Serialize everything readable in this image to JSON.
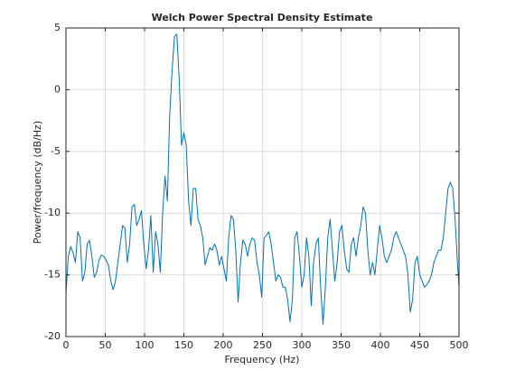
{
  "chart_data": {
    "type": "line",
    "title": "Welch Power Spectral Density Estimate",
    "xlabel": "Frequency (Hz)",
    "ylabel": "Power/frequency (dB/Hz)",
    "xlim": [
      0,
      500
    ],
    "xticks": [
      0,
      50,
      100,
      150,
      200,
      250,
      300,
      350,
      400,
      450,
      500
    ],
    "ylim": [
      -20,
      5
    ],
    "yticks": [
      -20,
      -15,
      -10,
      -5,
      0,
      5
    ],
    "grid": true,
    "series": [
      {
        "color": "#0072bd",
        "x": [
          0,
          3,
          6,
          9,
          12,
          15,
          18,
          21,
          24,
          27,
          30,
          33,
          36,
          39,
          42,
          45,
          48,
          51,
          54,
          57,
          60,
          63,
          66,
          69,
          72,
          75,
          78,
          81,
          84,
          87,
          90,
          93,
          96,
          99,
          102,
          105,
          108,
          111,
          114,
          117,
          120,
          123,
          126,
          129,
          132,
          135,
          138,
          141,
          144,
          147,
          150,
          153,
          156,
          159,
          162,
          165,
          168,
          171,
          174,
          177,
          180,
          183,
          186,
          189,
          192,
          195,
          198,
          201,
          204,
          207,
          210,
          213,
          216,
          219,
          222,
          225,
          228,
          231,
          234,
          237,
          240,
          243,
          246,
          249,
          252,
          255,
          258,
          261,
          264,
          267,
          270,
          273,
          276,
          279,
          282,
          285,
          288,
          291,
          294,
          297,
          300,
          303,
          306,
          309,
          312,
          315,
          318,
          321,
          324,
          327,
          330,
          333,
          336,
          339,
          342,
          345,
          348,
          351,
          354,
          357,
          360,
          363,
          366,
          369,
          372,
          375,
          378,
          381,
          384,
          387,
          390,
          393,
          396,
          399,
          402,
          405,
          408,
          411,
          414,
          417,
          420,
          423,
          426,
          429,
          432,
          435,
          438,
          441,
          444,
          447,
          450,
          453,
          456,
          459,
          462,
          465,
          468,
          471,
          474,
          477,
          480,
          483,
          486,
          489,
          492,
          495,
          498,
          500
        ],
        "values": [
          -16.5,
          -13.5,
          -12.7,
          -13.2,
          -14,
          -11.5,
          -12,
          -15.5,
          -14.8,
          -12.5,
          -12.2,
          -13.5,
          -15.2,
          -14.8,
          -13.8,
          -13.4,
          -13.5,
          -13.8,
          -14.2,
          -15.5,
          -16.2,
          -15.5,
          -14,
          -12.5,
          -11,
          -11.2,
          -14,
          -12.5,
          -9.5,
          -9.3,
          -11,
          -10.5,
          -9.8,
          -12.5,
          -14.5,
          -13,
          -10.2,
          -14.8,
          -11.5,
          -12.5,
          -14.8,
          -10,
          -7,
          -9,
          -2,
          1.5,
          4.3,
          4.5,
          1,
          -4.5,
          -3.5,
          -4.5,
          -9,
          -11,
          -8,
          -8,
          -10.5,
          -11,
          -12,
          -14.2,
          -13.5,
          -12.8,
          -13,
          -12.5,
          -13,
          -14.2,
          -13.5,
          -14.5,
          -15.5,
          -12,
          -10.2,
          -10.5,
          -13,
          -17.2,
          -14,
          -12.2,
          -12.5,
          -13.5,
          -12.5,
          -12,
          -12.2,
          -14,
          -15,
          -16.8,
          -12,
          -11.8,
          -11.5,
          -12.5,
          -14,
          -15.5,
          -15,
          -15.2,
          -16,
          -16,
          -17,
          -18.8,
          -17,
          -12,
          -11.5,
          -13.5,
          -16,
          -15,
          -12,
          -13.5,
          -17.5,
          -14,
          -12.5,
          -12,
          -16,
          -19,
          -16,
          -12,
          -10.5,
          -13,
          -15.5,
          -14,
          -11.5,
          -11,
          -13,
          -14.5,
          -14.8,
          -12.5,
          -12,
          -13.5,
          -12,
          -11,
          -9.5,
          -10,
          -13,
          -15,
          -14,
          -15,
          -13,
          -11,
          -12,
          -13.5,
          -14,
          -13.5,
          -13,
          -12,
          -11.5,
          -12,
          -12.5,
          -13,
          -13.5,
          -15,
          -18,
          -17,
          -14,
          -13.5,
          -15,
          -15.5,
          -16,
          -15.8,
          -15.5,
          -15,
          -14,
          -13.5,
          -13,
          -13,
          -12,
          -10,
          -8,
          -7.5,
          -8,
          -10.5,
          -14,
          -16
        ]
      }
    ]
  }
}
